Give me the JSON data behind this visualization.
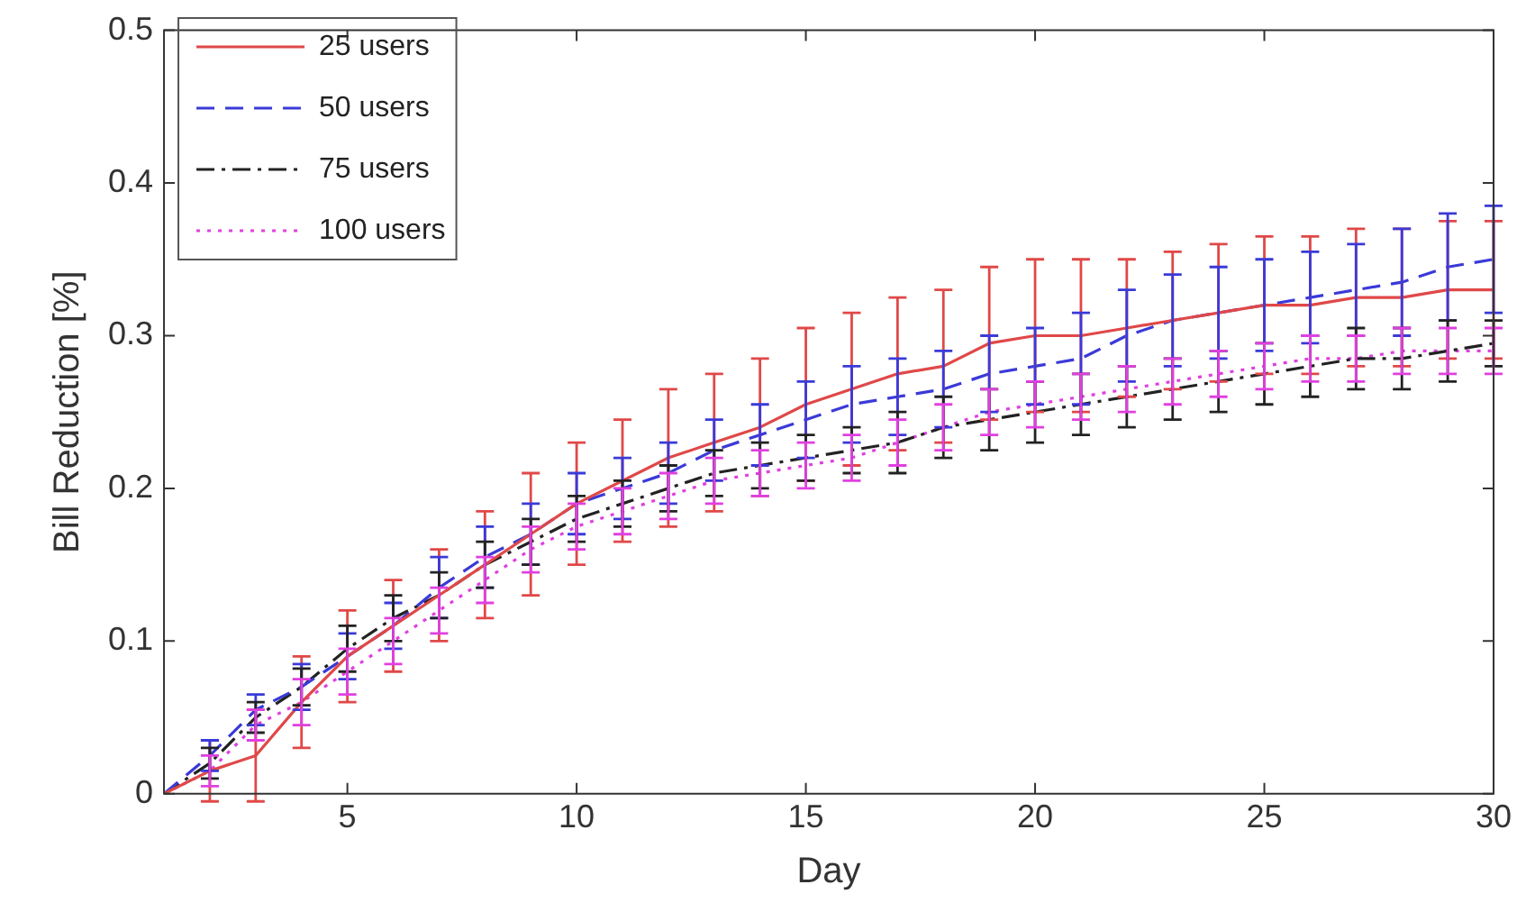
{
  "chart_data": {
    "type": "line",
    "xlabel": "Day",
    "ylabel": "Bill Reduction [%]",
    "x": [
      1,
      2,
      3,
      4,
      5,
      6,
      7,
      8,
      9,
      10,
      11,
      12,
      13,
      14,
      15,
      16,
      17,
      18,
      19,
      20,
      21,
      22,
      23,
      24,
      25,
      26,
      27,
      28,
      29,
      30
    ],
    "xlim": [
      1,
      30
    ],
    "xticks": [
      5,
      10,
      15,
      20,
      25,
      30
    ],
    "ylim": [
      0,
      0.5
    ],
    "yticks": [
      0,
      0.1,
      0.2,
      0.3,
      0.4,
      0.5
    ],
    "grid": false,
    "legend": "top left",
    "marker": "none",
    "series": [
      {
        "name": "25 users",
        "color": "#e04848",
        "line_style": "solid",
        "values": [
          0,
          0.015,
          0.025,
          0.06,
          0.09,
          0.11,
          0.13,
          0.15,
          0.17,
          0.19,
          0.205,
          0.22,
          0.23,
          0.24,
          0.255,
          0.265,
          0.275,
          0.28,
          0.295,
          0.3,
          0.3,
          0.305,
          0.31,
          0.315,
          0.32,
          0.32,
          0.325,
          0.325,
          0.33,
          0.33
        ],
        "errors": [
          null,
          0.02,
          0.03,
          0.03,
          0.03,
          0.03,
          0.03,
          0.035,
          0.04,
          0.04,
          0.04,
          0.045,
          0.045,
          0.045,
          0.05,
          0.05,
          0.05,
          0.05,
          0.05,
          0.05,
          0.05,
          0.045,
          0.045,
          0.045,
          0.045,
          0.045,
          0.045,
          0.045,
          0.045,
          0.045
        ]
      },
      {
        "name": "50 users",
        "color": "#3a3ad8",
        "line_style": "dashed",
        "values": [
          0,
          0.025,
          0.055,
          0.07,
          0.09,
          0.11,
          0.135,
          0.155,
          0.17,
          0.19,
          0.2,
          0.21,
          0.225,
          0.235,
          0.245,
          0.255,
          0.26,
          0.265,
          0.275,
          0.28,
          0.285,
          0.3,
          0.31,
          0.315,
          0.32,
          0.325,
          0.33,
          0.335,
          0.345,
          0.35
        ],
        "errors": [
          null,
          0.01,
          0.01,
          0.015,
          0.015,
          0.015,
          0.02,
          0.02,
          0.02,
          0.02,
          0.02,
          0.02,
          0.02,
          0.02,
          0.025,
          0.025,
          0.025,
          0.025,
          0.025,
          0.025,
          0.03,
          0.03,
          0.03,
          0.03,
          0.03,
          0.03,
          0.03,
          0.035,
          0.035,
          0.035
        ]
      },
      {
        "name": "75 users",
        "color": "#222222",
        "line_style": "dashdot",
        "values": [
          0,
          0.02,
          0.05,
          0.07,
          0.095,
          0.115,
          0.13,
          0.15,
          0.165,
          0.18,
          0.19,
          0.2,
          0.21,
          0.215,
          0.22,
          0.225,
          0.23,
          0.24,
          0.245,
          0.25,
          0.255,
          0.26,
          0.265,
          0.27,
          0.275,
          0.28,
          0.285,
          0.285,
          0.29,
          0.295
        ],
        "errors": [
          null,
          0.01,
          0.01,
          0.012,
          0.015,
          0.015,
          0.015,
          0.015,
          0.015,
          0.015,
          0.015,
          0.015,
          0.015,
          0.015,
          0.015,
          0.015,
          0.02,
          0.02,
          0.02,
          0.02,
          0.02,
          0.02,
          0.02,
          0.02,
          0.02,
          0.02,
          0.02,
          0.02,
          0.02,
          0.015
        ]
      },
      {
        "name": "100 users",
        "color": "#e040e0",
        "line_style": "dotted",
        "values": [
          0,
          0.015,
          0.045,
          0.06,
          0.08,
          0.1,
          0.12,
          0.14,
          0.16,
          0.175,
          0.185,
          0.195,
          0.205,
          0.21,
          0.215,
          0.22,
          0.23,
          0.24,
          0.25,
          0.255,
          0.26,
          0.265,
          0.27,
          0.275,
          0.28,
          0.285,
          0.285,
          0.29,
          0.29,
          0.29
        ],
        "errors": [
          null,
          0.01,
          0.01,
          0.015,
          0.015,
          0.015,
          0.015,
          0.015,
          0.015,
          0.015,
          0.015,
          0.015,
          0.015,
          0.015,
          0.015,
          0.015,
          0.015,
          0.015,
          0.015,
          0.015,
          0.015,
          0.015,
          0.015,
          0.015,
          0.015,
          0.015,
          0.015,
          0.015,
          0.015,
          0.015
        ]
      }
    ]
  }
}
